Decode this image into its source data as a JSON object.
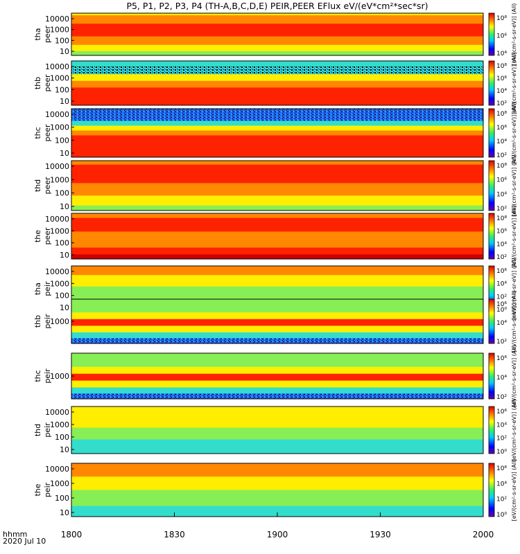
{
  "title": "P5, P1, P2, P3, P4 (TH-A,B,C,D,E) PEIR,PEER EFlux eV/(eV*cm²*sec*sr)",
  "xaxis": {
    "ticks": [
      "1800",
      "1830",
      "1900",
      "1930",
      "2000"
    ],
    "left_label_line1": "hhmm",
    "left_label_line2": "2020 Jul 10"
  },
  "colorbar_label_short": "[eV/(cm²-s-sr-eV)] (All)",
  "colors": {
    "deep_red": "#cc0000",
    "red": "#ff2200",
    "orange": "#ff8800",
    "yellow": "#ffee00",
    "green": "#88ee55",
    "cyan": "#33ddcc",
    "blue": "#2255ff",
    "black": "#000000"
  },
  "chart_data": {
    "type": "heatmap",
    "x_range": [
      "18:00",
      "20:00"
    ],
    "panels": [
      {
        "name1": "tha",
        "name2": "peer",
        "yticks": [
          "10000",
          "1000",
          "100",
          "10"
        ],
        "cb_ticks": [
          "10⁸",
          "10⁶",
          "10⁴"
        ]
      },
      {
        "name1": "thb",
        "name2": "peer",
        "yticks": [
          "10000",
          "1000",
          "100",
          "10"
        ],
        "cb_ticks": [
          "10⁸",
          "10⁶",
          "10⁴",
          "10²"
        ]
      },
      {
        "name1": "thc",
        "name2": "peer",
        "yticks": [
          "10000",
          "1000",
          "100",
          "10"
        ],
        "cb_ticks": [
          "10⁸",
          "10⁶",
          "10⁴",
          "10²"
        ]
      },
      {
        "name1": "thd",
        "name2": "peer",
        "yticks": [
          "10000",
          "1000",
          "100",
          "10"
        ],
        "cb_ticks": [
          "10⁸",
          "10⁶",
          "10⁴",
          "10²"
        ]
      },
      {
        "name1": "the",
        "name2": "peer",
        "yticks": [
          "10000",
          "1000",
          "100",
          "10"
        ],
        "cb_ticks": [
          "10⁸",
          "10⁶",
          "10⁴",
          "10²"
        ]
      },
      {
        "name1": "tha",
        "name2": "peir",
        "yticks": [
          "10000",
          "1000",
          "100",
          "10"
        ],
        "cb_ticks": [
          "10⁶",
          "10⁴",
          "10²",
          "10⁰"
        ]
      },
      {
        "name1": "thb",
        "name2": "peir",
        "yticks": [
          "1000"
        ],
        "cb_ticks": [
          "10⁶",
          "10⁴",
          "10²"
        ]
      },
      {
        "name1": "thc",
        "name2": "peir",
        "yticks": [
          "1000"
        ],
        "cb_ticks": [
          "10⁶",
          "10⁴",
          "10²"
        ]
      },
      {
        "name1": "thd",
        "name2": "peir",
        "yticks": [
          "10000",
          "1000",
          "100",
          "10"
        ],
        "cb_ticks": [
          "10⁶",
          "10⁴",
          "10²",
          "10⁰"
        ]
      },
      {
        "name1": "the",
        "name2": "peir",
        "yticks": [
          "10000",
          "1000",
          "100",
          "10"
        ],
        "cb_ticks": [
          "10⁶",
          "10⁴",
          "10²",
          "10⁰"
        ]
      }
    ]
  }
}
